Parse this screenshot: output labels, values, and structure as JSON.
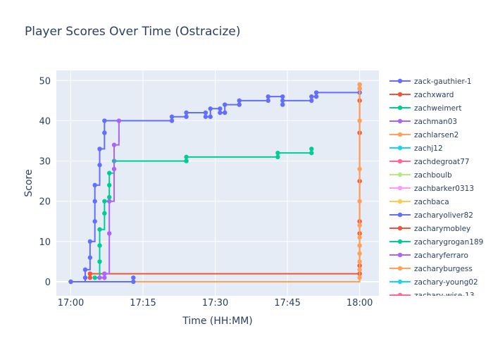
{
  "chart_data": {
    "type": "line",
    "title": "Player Scores Over Time (Ostracize)",
    "xlabel": "Time (HH:MM)",
    "ylabel": "Score",
    "x_range": [
      "16:57",
      "18:04"
    ],
    "y_range": [
      -3.5,
      52.5
    ],
    "x_ticks": [
      {
        "label": "17:00",
        "value": "17:00"
      },
      {
        "label": "17:15",
        "value": "17:15"
      },
      {
        "label": "17:30",
        "value": "17:30"
      },
      {
        "label": "17:45",
        "value": "17:45"
      },
      {
        "label": "18:00",
        "value": "18:00"
      }
    ],
    "y_ticks": [
      0,
      10,
      20,
      30,
      40,
      50
    ],
    "grid": true,
    "legend_position": "right",
    "series": [
      {
        "name": "zack-gauthier-1",
        "color": "#636efa",
        "line_shape": "step",
        "points": [
          [
            "17:00",
            0
          ],
          [
            "17:03",
            1
          ],
          [
            "17:03",
            3
          ],
          [
            "17:04",
            6
          ],
          [
            "17:04",
            10
          ],
          [
            "17:05",
            15
          ],
          [
            "17:05",
            20
          ],
          [
            "17:05",
            24
          ],
          [
            "17:06",
            29
          ],
          [
            "17:06",
            33
          ],
          [
            "17:07",
            37
          ],
          [
            "17:07",
            40
          ],
          [
            "17:21",
            40
          ],
          [
            "17:21",
            41
          ],
          [
            "17:24",
            41
          ],
          [
            "17:24",
            42
          ],
          [
            "17:28",
            42
          ],
          [
            "17:28",
            41
          ],
          [
            "17:29",
            41
          ],
          [
            "17:29",
            43
          ],
          [
            "17:31",
            43
          ],
          [
            "17:31",
            42
          ],
          [
            "17:32",
            42
          ],
          [
            "17:32",
            44
          ],
          [
            "17:35",
            44
          ],
          [
            "17:35",
            45
          ],
          [
            "17:41",
            45
          ],
          [
            "17:41",
            46
          ],
          [
            "17:44",
            46
          ],
          [
            "17:44",
            44
          ],
          [
            "17:44",
            45
          ],
          [
            "17:50",
            45
          ],
          [
            "17:50",
            46
          ],
          [
            "17:51",
            46
          ],
          [
            "17:51",
            47
          ],
          [
            "18:00",
            47
          ],
          [
            "18:00",
            49
          ]
        ]
      },
      {
        "name": "zachxward",
        "color": "#ef553b",
        "line_shape": "hv",
        "points": [
          [
            "17:04",
            1
          ],
          [
            "17:04",
            2
          ],
          [
            "18:00",
            2
          ],
          [
            "18:00",
            4
          ],
          [
            "18:00",
            12
          ],
          [
            "18:00",
            15
          ],
          [
            "18:00",
            25
          ],
          [
            "18:00",
            37
          ],
          [
            "18:00",
            45
          ],
          [
            "18:00",
            48
          ]
        ]
      },
      {
        "name": "zachweimert",
        "color": "#00cc96",
        "line_shape": "step",
        "points": [
          [
            "17:05",
            1
          ],
          [
            "17:06",
            5
          ],
          [
            "17:06",
            9
          ],
          [
            "17:06",
            13
          ],
          [
            "17:07",
            17
          ],
          [
            "17:07",
            20
          ],
          [
            "17:08",
            21
          ],
          [
            "17:08",
            24
          ],
          [
            "17:08",
            27
          ],
          [
            "17:09",
            30
          ],
          [
            "17:24",
            30
          ],
          [
            "17:24",
            31
          ],
          [
            "17:43",
            31
          ],
          [
            "17:43",
            32
          ],
          [
            "17:50",
            32
          ],
          [
            "17:50",
            33
          ]
        ]
      },
      {
        "name": "zachman03",
        "color": "#ab63fa",
        "line_shape": "step",
        "points": [
          [
            "17:07",
            1
          ],
          [
            "17:06",
            1
          ],
          [
            "17:07",
            2
          ],
          [
            "17:08",
            12
          ],
          [
            "17:08",
            20
          ],
          [
            "17:09",
            28
          ],
          [
            "17:09",
            34
          ],
          [
            "17:10",
            40
          ]
        ]
      },
      {
        "name": "zachlarsen2",
        "color": "#ffa15a",
        "line_shape": "step",
        "points": [
          [
            "17:00",
            0
          ],
          [
            "18:00",
            1
          ],
          [
            "18:00",
            3
          ],
          [
            "18:00",
            5
          ],
          [
            "18:00",
            7
          ],
          [
            "18:00",
            9
          ],
          [
            "18:00",
            11
          ],
          [
            "18:00",
            14
          ],
          [
            "18:00",
            20
          ],
          [
            "18:00",
            28
          ],
          [
            "18:00",
            40
          ],
          [
            "18:00",
            48
          ],
          [
            "18:00",
            49
          ]
        ]
      },
      {
        "name": "zachj12",
        "color": "#19d3f3",
        "line_shape": "step",
        "points": []
      },
      {
        "name": "zachdegroat77",
        "color": "#ff6692",
        "line_shape": "step",
        "points": []
      },
      {
        "name": "zachboulb",
        "color": "#b6e880",
        "line_shape": "step",
        "points": []
      },
      {
        "name": "zachbarker0313",
        "color": "#ff97ff",
        "line_shape": "step",
        "points": []
      },
      {
        "name": "zachbaca",
        "color": "#fecb52",
        "line_shape": "step",
        "points": [
          [
            "17:00",
            0
          ]
        ]
      },
      {
        "name": "zacharyoliver82",
        "color": "#636efa",
        "line_shape": "step",
        "points": [
          [
            "17:00",
            0
          ],
          [
            "17:13",
            0
          ],
          [
            "17:13",
            1
          ]
        ]
      },
      {
        "name": "zacharymobley",
        "color": "#ef553b",
        "line_shape": "step",
        "points": []
      },
      {
        "name": "zacharygrogan189",
        "color": "#00cc96",
        "line_shape": "step",
        "points": []
      },
      {
        "name": "zacharyferraro",
        "color": "#ab63fa",
        "line_shape": "step",
        "points": []
      },
      {
        "name": "zacharyburgess",
        "color": "#ffa15a",
        "line_shape": "step",
        "points": []
      },
      {
        "name": "zachary-young02",
        "color": "#19d3f3",
        "line_shape": "step",
        "points": []
      },
      {
        "name": "zachary-wise-13",
        "color": "#ff6692",
        "line_shape": "step",
        "points": []
      }
    ]
  }
}
